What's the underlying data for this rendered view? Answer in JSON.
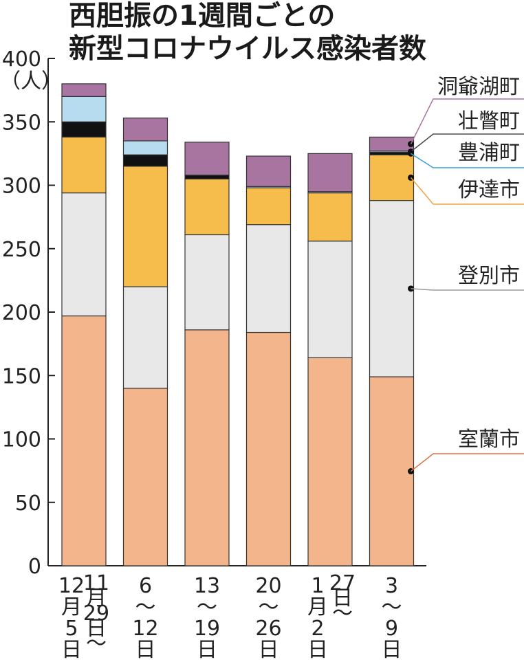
{
  "chart_data": {
    "type": "bar",
    "stacked": true,
    "title": [
      "西胆振の1週間ごとの",
      "新型コロナウイルス感染者数"
    ],
    "ylabel": "（人）",
    "ylim": [
      0,
      400
    ],
    "yticks": [
      "0",
      "50",
      "100",
      "150",
      "200",
      "250",
      "300",
      "350",
      "400"
    ],
    "categories": [
      {
        "main": [
          "12",
          "月",
          "5",
          "日"
        ],
        "prefix": [
          "11",
          "月",
          "29",
          "日",
          "〜"
        ]
      },
      {
        "main": [
          "6",
          "〜",
          "12",
          "日"
        ],
        "prefix": []
      },
      {
        "main": [
          "13",
          "〜",
          "19",
          "日"
        ],
        "prefix": []
      },
      {
        "main": [
          "20",
          "〜",
          "26",
          "日"
        ],
        "prefix": []
      },
      {
        "main": [
          "1",
          "月",
          "2",
          "日"
        ],
        "prefix": [
          "27",
          "日",
          "〜"
        ]
      },
      {
        "main": [
          "3",
          "〜",
          "9",
          "日"
        ],
        "prefix": []
      }
    ],
    "series": [
      {
        "name": "室蘭市",
        "color": "#f2b58c",
        "values": [
          197,
          140,
          186,
          184,
          164,
          149
        ]
      },
      {
        "name": "登別市",
        "color": "#e8e8e8",
        "values": [
          97,
          80,
          75,
          85,
          92,
          139
        ]
      },
      {
        "name": "伊達市",
        "color": "#f6bd4c",
        "values": [
          44,
          95,
          44,
          29,
          38,
          36
        ]
      },
      {
        "name": "豊浦町",
        "color": "#111111",
        "values": [
          12,
          9,
          3,
          0,
          0,
          2
        ]
      },
      {
        "name": "壮瞥町",
        "color": "#b8dcef",
        "values": [
          20,
          11,
          0,
          1,
          1,
          1
        ]
      },
      {
        "name": "洞爺湖町",
        "color": "#a875a0",
        "values": [
          10,
          18,
          26,
          24,
          30,
          11
        ]
      }
    ],
    "legend_order": [
      "洞爺湖町",
      "壮瞥町",
      "豊浦町",
      "伊達市",
      "登別市",
      "室蘭市"
    ],
    "legend_line_colors": {
      "洞爺湖町": "#a875a0",
      "壮瞥町": "#4a4a4a",
      "豊浦町": "#3aa0d8",
      "伊達市": "#f0a040",
      "登別市": "#9a9a9a",
      "室蘭市": "#e07040"
    },
    "grid": false
  }
}
